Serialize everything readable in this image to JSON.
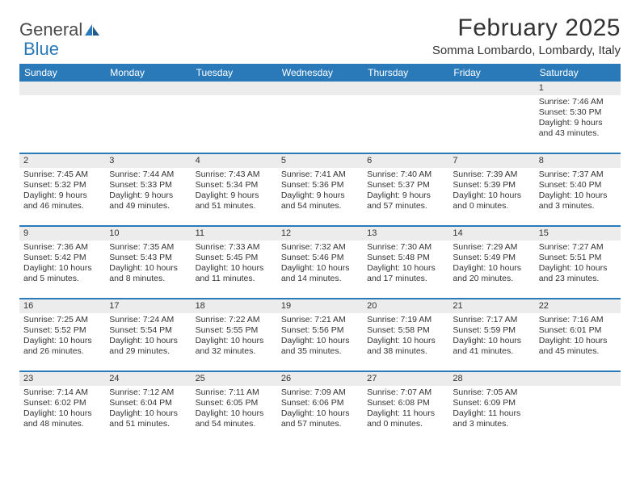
{
  "logo": {
    "text1": "General",
    "text2": "Blue"
  },
  "title": "February 2025",
  "location": "Somma Lombardo, Lombardy, Italy",
  "colors": {
    "header_blue": "#2a7ab9",
    "gray_bar": "#ececec",
    "text": "#333333",
    "bg": "#ffffff"
  },
  "weekdays": [
    "Sunday",
    "Monday",
    "Tuesday",
    "Wednesday",
    "Thursday",
    "Friday",
    "Saturday"
  ],
  "weeks": [
    [
      {
        "day": "",
        "sunrise": "",
        "sunset": "",
        "daylight1": "",
        "daylight2": ""
      },
      {
        "day": "",
        "sunrise": "",
        "sunset": "",
        "daylight1": "",
        "daylight2": ""
      },
      {
        "day": "",
        "sunrise": "",
        "sunset": "",
        "daylight1": "",
        "daylight2": ""
      },
      {
        "day": "",
        "sunrise": "",
        "sunset": "",
        "daylight1": "",
        "daylight2": ""
      },
      {
        "day": "",
        "sunrise": "",
        "sunset": "",
        "daylight1": "",
        "daylight2": ""
      },
      {
        "day": "",
        "sunrise": "",
        "sunset": "",
        "daylight1": "",
        "daylight2": ""
      },
      {
        "day": "1",
        "sunrise": "Sunrise: 7:46 AM",
        "sunset": "Sunset: 5:30 PM",
        "daylight1": "Daylight: 9 hours",
        "daylight2": "and 43 minutes."
      }
    ],
    [
      {
        "day": "2",
        "sunrise": "Sunrise: 7:45 AM",
        "sunset": "Sunset: 5:32 PM",
        "daylight1": "Daylight: 9 hours",
        "daylight2": "and 46 minutes."
      },
      {
        "day": "3",
        "sunrise": "Sunrise: 7:44 AM",
        "sunset": "Sunset: 5:33 PM",
        "daylight1": "Daylight: 9 hours",
        "daylight2": "and 49 minutes."
      },
      {
        "day": "4",
        "sunrise": "Sunrise: 7:43 AM",
        "sunset": "Sunset: 5:34 PM",
        "daylight1": "Daylight: 9 hours",
        "daylight2": "and 51 minutes."
      },
      {
        "day": "5",
        "sunrise": "Sunrise: 7:41 AM",
        "sunset": "Sunset: 5:36 PM",
        "daylight1": "Daylight: 9 hours",
        "daylight2": "and 54 minutes."
      },
      {
        "day": "6",
        "sunrise": "Sunrise: 7:40 AM",
        "sunset": "Sunset: 5:37 PM",
        "daylight1": "Daylight: 9 hours",
        "daylight2": "and 57 minutes."
      },
      {
        "day": "7",
        "sunrise": "Sunrise: 7:39 AM",
        "sunset": "Sunset: 5:39 PM",
        "daylight1": "Daylight: 10 hours",
        "daylight2": "and 0 minutes."
      },
      {
        "day": "8",
        "sunrise": "Sunrise: 7:37 AM",
        "sunset": "Sunset: 5:40 PM",
        "daylight1": "Daylight: 10 hours",
        "daylight2": "and 3 minutes."
      }
    ],
    [
      {
        "day": "9",
        "sunrise": "Sunrise: 7:36 AM",
        "sunset": "Sunset: 5:42 PM",
        "daylight1": "Daylight: 10 hours",
        "daylight2": "and 5 minutes."
      },
      {
        "day": "10",
        "sunrise": "Sunrise: 7:35 AM",
        "sunset": "Sunset: 5:43 PM",
        "daylight1": "Daylight: 10 hours",
        "daylight2": "and 8 minutes."
      },
      {
        "day": "11",
        "sunrise": "Sunrise: 7:33 AM",
        "sunset": "Sunset: 5:45 PM",
        "daylight1": "Daylight: 10 hours",
        "daylight2": "and 11 minutes."
      },
      {
        "day": "12",
        "sunrise": "Sunrise: 7:32 AM",
        "sunset": "Sunset: 5:46 PM",
        "daylight1": "Daylight: 10 hours",
        "daylight2": "and 14 minutes."
      },
      {
        "day": "13",
        "sunrise": "Sunrise: 7:30 AM",
        "sunset": "Sunset: 5:48 PM",
        "daylight1": "Daylight: 10 hours",
        "daylight2": "and 17 minutes."
      },
      {
        "day": "14",
        "sunrise": "Sunrise: 7:29 AM",
        "sunset": "Sunset: 5:49 PM",
        "daylight1": "Daylight: 10 hours",
        "daylight2": "and 20 minutes."
      },
      {
        "day": "15",
        "sunrise": "Sunrise: 7:27 AM",
        "sunset": "Sunset: 5:51 PM",
        "daylight1": "Daylight: 10 hours",
        "daylight2": "and 23 minutes."
      }
    ],
    [
      {
        "day": "16",
        "sunrise": "Sunrise: 7:25 AM",
        "sunset": "Sunset: 5:52 PM",
        "daylight1": "Daylight: 10 hours",
        "daylight2": "and 26 minutes."
      },
      {
        "day": "17",
        "sunrise": "Sunrise: 7:24 AM",
        "sunset": "Sunset: 5:54 PM",
        "daylight1": "Daylight: 10 hours",
        "daylight2": "and 29 minutes."
      },
      {
        "day": "18",
        "sunrise": "Sunrise: 7:22 AM",
        "sunset": "Sunset: 5:55 PM",
        "daylight1": "Daylight: 10 hours",
        "daylight2": "and 32 minutes."
      },
      {
        "day": "19",
        "sunrise": "Sunrise: 7:21 AM",
        "sunset": "Sunset: 5:56 PM",
        "daylight1": "Daylight: 10 hours",
        "daylight2": "and 35 minutes."
      },
      {
        "day": "20",
        "sunrise": "Sunrise: 7:19 AM",
        "sunset": "Sunset: 5:58 PM",
        "daylight1": "Daylight: 10 hours",
        "daylight2": "and 38 minutes."
      },
      {
        "day": "21",
        "sunrise": "Sunrise: 7:17 AM",
        "sunset": "Sunset: 5:59 PM",
        "daylight1": "Daylight: 10 hours",
        "daylight2": "and 41 minutes."
      },
      {
        "day": "22",
        "sunrise": "Sunrise: 7:16 AM",
        "sunset": "Sunset: 6:01 PM",
        "daylight1": "Daylight: 10 hours",
        "daylight2": "and 45 minutes."
      }
    ],
    [
      {
        "day": "23",
        "sunrise": "Sunrise: 7:14 AM",
        "sunset": "Sunset: 6:02 PM",
        "daylight1": "Daylight: 10 hours",
        "daylight2": "and 48 minutes."
      },
      {
        "day": "24",
        "sunrise": "Sunrise: 7:12 AM",
        "sunset": "Sunset: 6:04 PM",
        "daylight1": "Daylight: 10 hours",
        "daylight2": "and 51 minutes."
      },
      {
        "day": "25",
        "sunrise": "Sunrise: 7:11 AM",
        "sunset": "Sunset: 6:05 PM",
        "daylight1": "Daylight: 10 hours",
        "daylight2": "and 54 minutes."
      },
      {
        "day": "26",
        "sunrise": "Sunrise: 7:09 AM",
        "sunset": "Sunset: 6:06 PM",
        "daylight1": "Daylight: 10 hours",
        "daylight2": "and 57 minutes."
      },
      {
        "day": "27",
        "sunrise": "Sunrise: 7:07 AM",
        "sunset": "Sunset: 6:08 PM",
        "daylight1": "Daylight: 11 hours",
        "daylight2": "and 0 minutes."
      },
      {
        "day": "28",
        "sunrise": "Sunrise: 7:05 AM",
        "sunset": "Sunset: 6:09 PM",
        "daylight1": "Daylight: 11 hours",
        "daylight2": "and 3 minutes."
      },
      {
        "day": "",
        "sunrise": "",
        "sunset": "",
        "daylight1": "",
        "daylight2": ""
      }
    ]
  ]
}
